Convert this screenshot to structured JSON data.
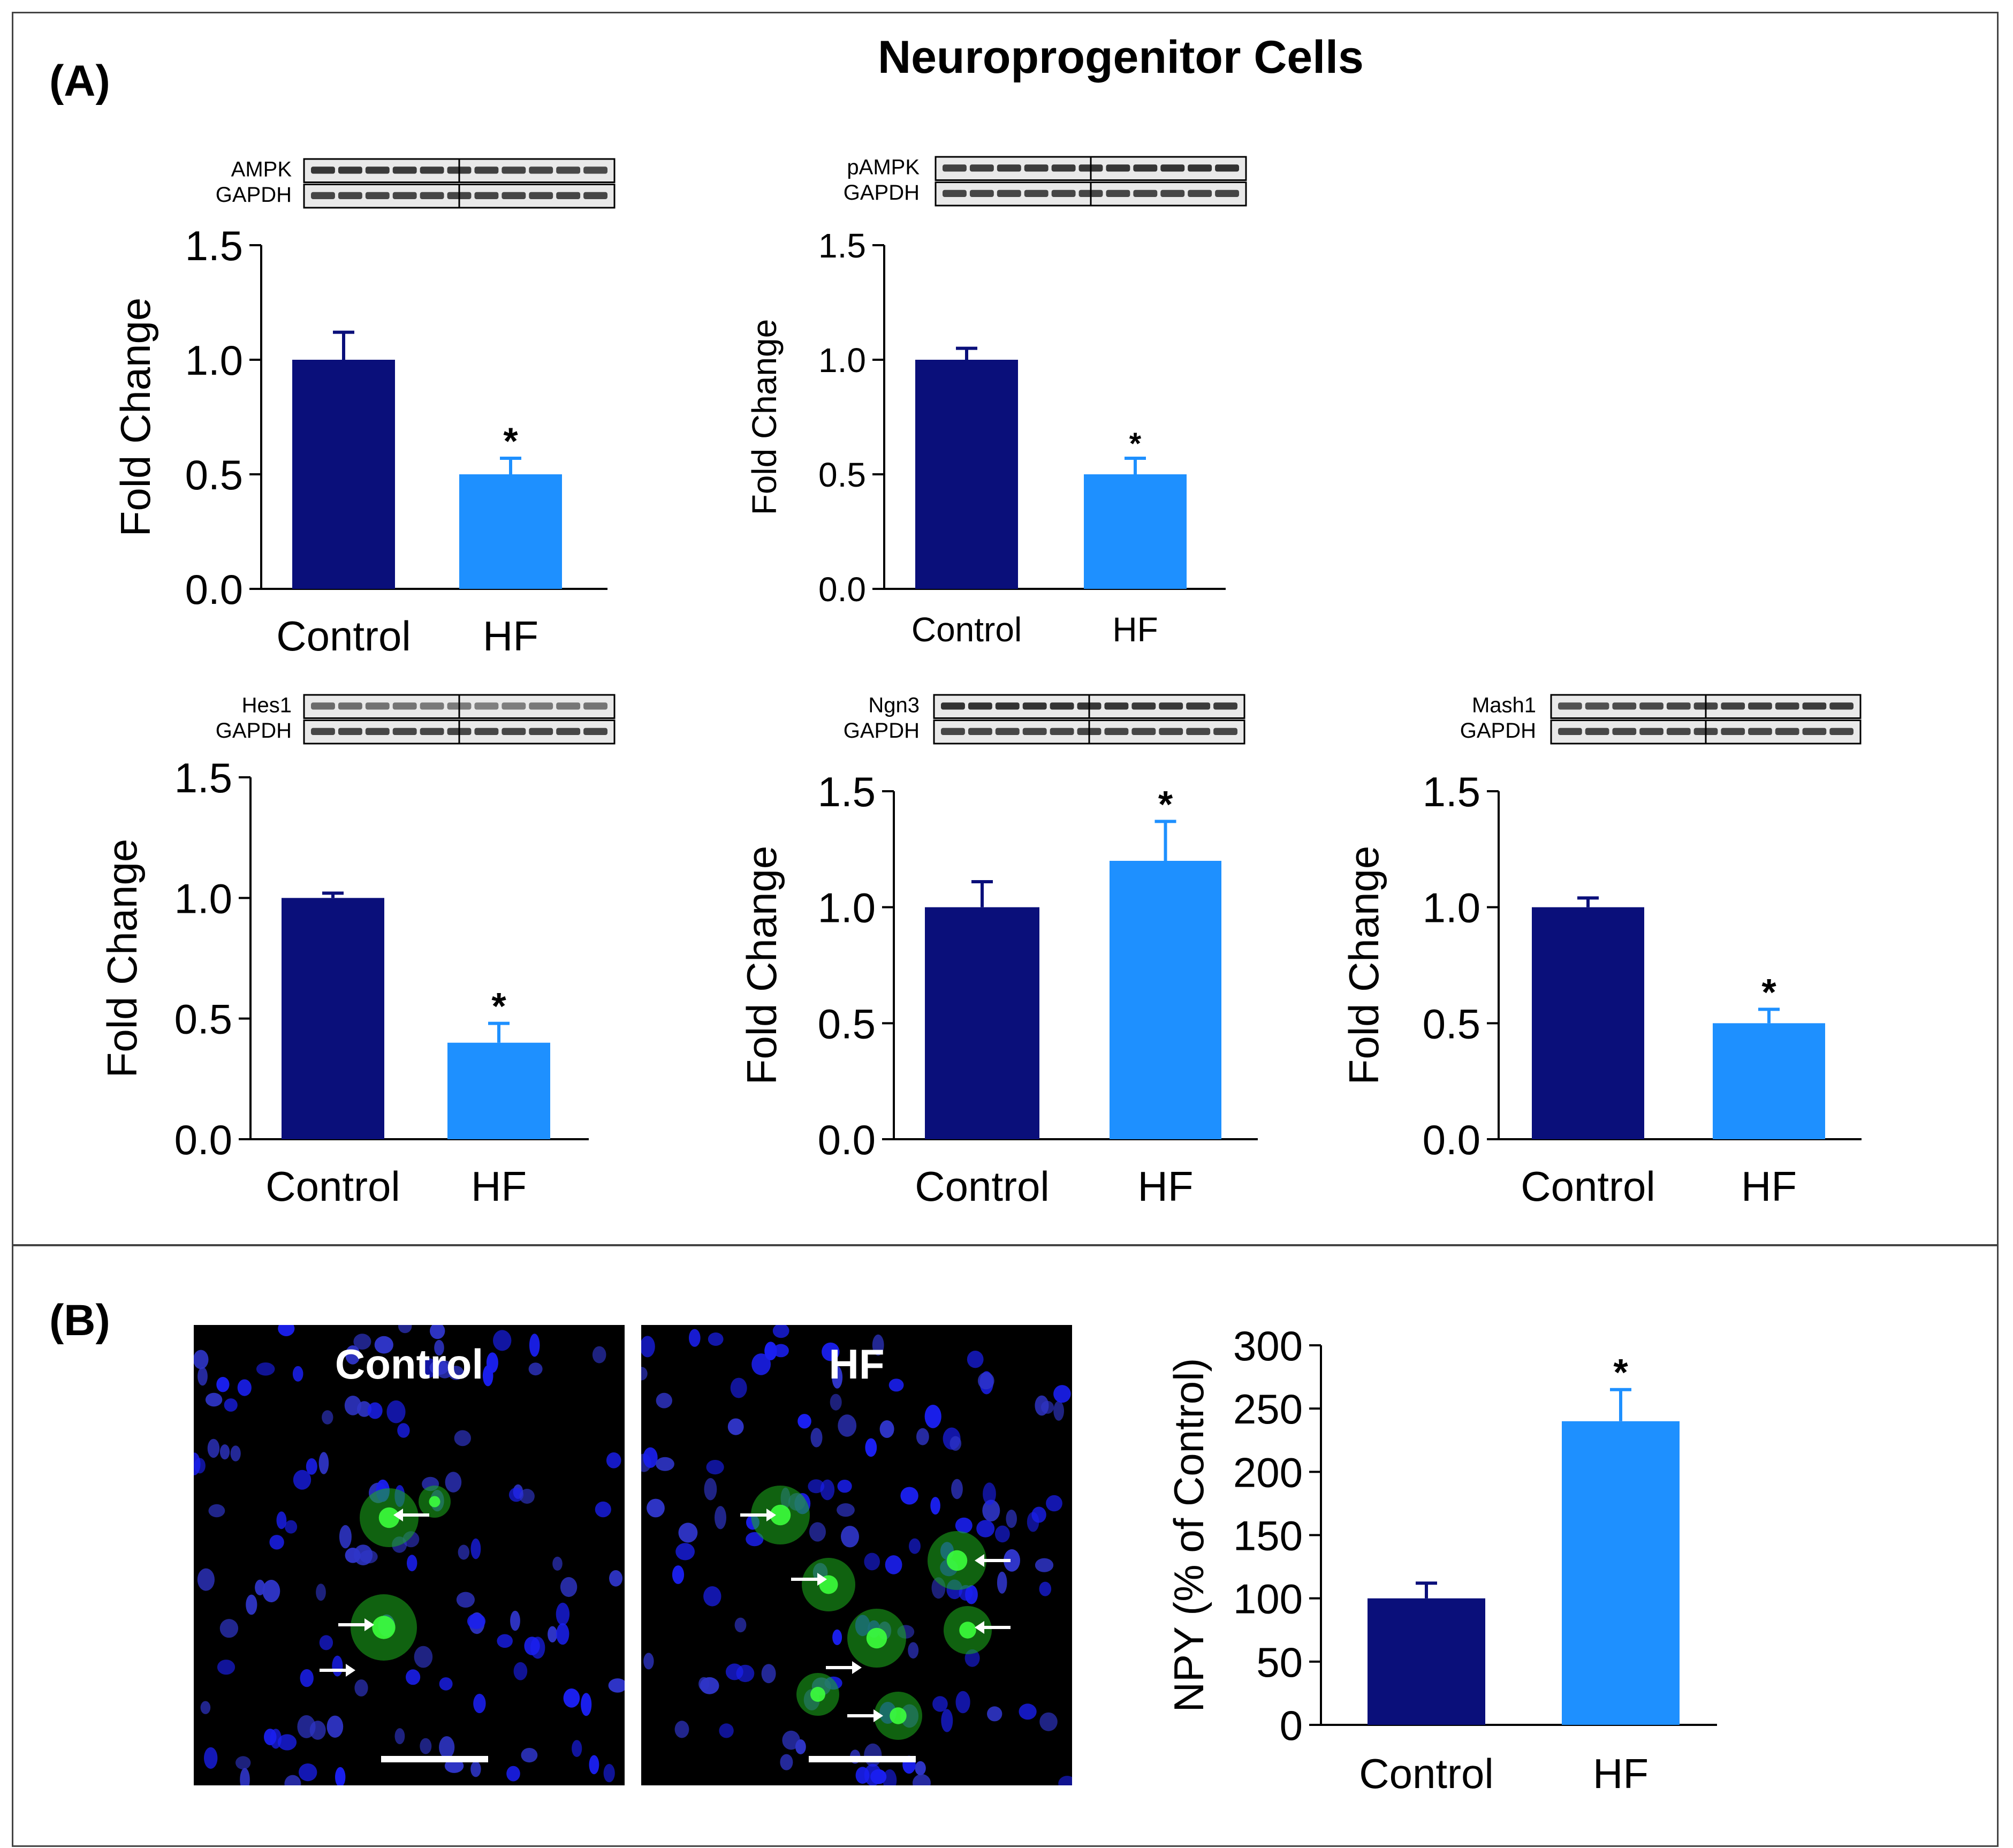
{
  "figure": {
    "title": "Neuroprogenitor Cells",
    "panel_a_label": "(A)",
    "panel_b_label": "(B)"
  },
  "colors": {
    "control": "#0a0f7a",
    "hf": "#1e90ff",
    "control_error": "#0a0f7a",
    "hf_error": "#1e90ff"
  },
  "blots": [
    {
      "protein": "AMPK",
      "loading": "GAPDH"
    },
    {
      "protein": "pAMPK",
      "loading": "GAPDH"
    },
    {
      "protein": "Hes1",
      "loading": "GAPDH"
    },
    {
      "protein": "Ngn3",
      "loading": "GAPDH"
    },
    {
      "protein": "Mash1",
      "loading": "GAPDH"
    }
  ],
  "micrographs": [
    {
      "label": "Control",
      "arrow_icon": "arrow-right-icon"
    },
    {
      "label": "HF",
      "arrow_icon": "arrow-right-icon"
    }
  ],
  "chart_data": [
    {
      "type": "bar",
      "panel": "A",
      "categories": [
        "Control",
        "HF"
      ],
      "values": [
        1.0,
        0.5
      ],
      "errors": [
        0.12,
        0.07
      ],
      "significance": [
        "",
        "*"
      ],
      "ylabel": "Fold Change",
      "ylim": [
        0,
        1.5
      ],
      "yticks": [
        "0.0",
        "0.5",
        "1.0",
        "1.5"
      ],
      "grid": false
    },
    {
      "type": "bar",
      "panel": "A",
      "categories": [
        "Control",
        "HF"
      ],
      "values": [
        1.0,
        0.5
      ],
      "errors": [
        0.05,
        0.07
      ],
      "significance": [
        "",
        "*"
      ],
      "ylabel": "Fold Change",
      "ylim": [
        0,
        1.5
      ],
      "yticks": [
        "0.0",
        "0.5",
        "1.0",
        "1.5"
      ],
      "grid": false
    },
    {
      "type": "bar",
      "panel": "A",
      "categories": [
        "Control",
        "HF"
      ],
      "values": [
        1.0,
        0.4
      ],
      "errors": [
        0.02,
        0.08
      ],
      "significance": [
        "",
        "*"
      ],
      "ylabel": "Fold Change",
      "ylim": [
        0,
        1.5
      ],
      "yticks": [
        "0.0",
        "0.5",
        "1.0",
        "1.5"
      ],
      "grid": false
    },
    {
      "type": "bar",
      "panel": "A",
      "categories": [
        "Control",
        "HF"
      ],
      "values": [
        1.0,
        1.2
      ],
      "errors": [
        0.11,
        0.17
      ],
      "significance": [
        "",
        "*"
      ],
      "ylabel": "Fold Change",
      "ylim": [
        0,
        1.5
      ],
      "yticks": [
        "0.0",
        "0.5",
        "1.0",
        "1.5"
      ],
      "grid": false
    },
    {
      "type": "bar",
      "panel": "A",
      "categories": [
        "Control",
        "HF"
      ],
      "values": [
        1.0,
        0.5
      ],
      "errors": [
        0.04,
        0.06
      ],
      "significance": [
        "",
        "*"
      ],
      "ylabel": "Fold Change",
      "ylim": [
        0,
        1.5
      ],
      "yticks": [
        "0.0",
        "0.5",
        "1.0",
        "1.5"
      ],
      "grid": false
    },
    {
      "type": "bar",
      "panel": "B",
      "categories": [
        "Control",
        "HF"
      ],
      "values": [
        100,
        240
      ],
      "errors": [
        12,
        25
      ],
      "significance": [
        "",
        "*"
      ],
      "ylabel": "NPY (% of Control)",
      "ylim": [
        0,
        300
      ],
      "yticks": [
        "0",
        "50",
        "100",
        "150",
        "200",
        "250",
        "300"
      ],
      "grid": false
    }
  ]
}
